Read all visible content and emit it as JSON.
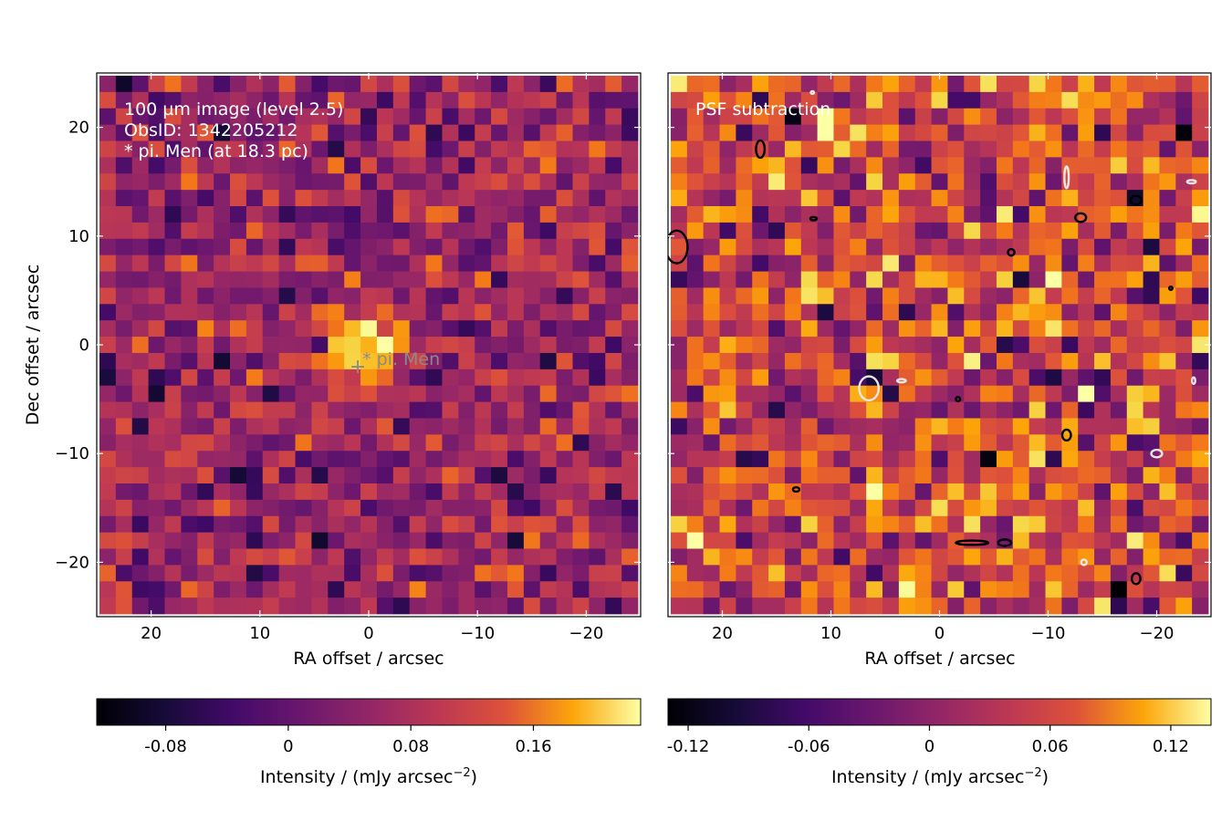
{
  "chart_data": [
    {
      "type": "heatmap",
      "panel": "left",
      "annotation_lines": [
        "100 µm image (level 2.5)",
        "ObsID: 1342205212",
        "* pi. Men (at 18.3 pc)"
      ],
      "xlabel": "RA offset / arcsec",
      "ylabel": "Dec offset / arcsec",
      "xlim": [
        25,
        -25
      ],
      "ylim": [
        -25,
        25
      ],
      "x_ticks": [
        20,
        10,
        0,
        -10,
        -20
      ],
      "x_tick_labels": [
        "20",
        "10",
        "0",
        "−10",
        "−20"
      ],
      "y_ticks": [
        20,
        10,
        0,
        -10,
        -20
      ],
      "y_tick_labels": [
        "20",
        "10",
        "0",
        "−10",
        "−20"
      ],
      "grid": false,
      "colormap": "inferno",
      "colorbar": {
        "label": "Intensity / (mJy arcsec",
        "label_exponent": "−2",
        "label_close": ")",
        "range": [
          -0.125,
          0.23
        ],
        "ticks": [
          -0.08,
          0,
          0.08,
          0.16
        ],
        "tick_labels": [
          "-0.08",
          "0",
          "0.08",
          "0.16"
        ]
      },
      "marker": {
        "x": 1,
        "y": -2,
        "symbol": "+",
        "label": "* pi. Men"
      },
      "source_peak": {
        "x": 0,
        "y": 0,
        "value": 0.22
      },
      "pixel_grid": {
        "nx": 33,
        "ny": 33,
        "pixel_size_arcsec": 1.5
      }
    },
    {
      "type": "heatmap",
      "panel": "right",
      "annotation_lines": [
        "PSF subtraction"
      ],
      "xlabel": "RA offset / arcsec",
      "ylabel": "",
      "xlim": [
        25,
        -25
      ],
      "ylim": [
        -25,
        25
      ],
      "x_ticks": [
        20,
        10,
        0,
        -10,
        -20
      ],
      "x_tick_labels": [
        "20",
        "10",
        "0",
        "−10",
        "−20"
      ],
      "grid": false,
      "colormap": "inferno",
      "colorbar": {
        "label": "Intensity / (mJy arcsec",
        "label_exponent": "−2",
        "label_close": ")",
        "range": [
          -0.13,
          0.14
        ],
        "ticks": [
          -0.12,
          -0.06,
          0,
          0.06,
          0.12
        ],
        "tick_labels": [
          "-0.12",
          "-0.06",
          "0",
          "0.06",
          "0.12"
        ]
      },
      "contours": [
        {
          "color": "black",
          "level": "positive",
          "x": 16.5,
          "y": 18,
          "rx": 0.4,
          "ry": 0.8
        },
        {
          "color": "black",
          "level": "positive",
          "x": 24.2,
          "y": 9,
          "rx": 1.0,
          "ry": 1.5
        },
        {
          "color": "black",
          "level": "positive",
          "x": 11.6,
          "y": 11.6,
          "rx": 0.3,
          "ry": 0.15
        },
        {
          "color": "black",
          "level": "positive",
          "x": -6.6,
          "y": 8.5,
          "rx": 0.3,
          "ry": 0.3
        },
        {
          "color": "black",
          "level": "positive",
          "x": -13.0,
          "y": 11.7,
          "rx": 0.5,
          "ry": 0.4
        },
        {
          "color": "black",
          "level": "positive",
          "x": -18.1,
          "y": 13.3,
          "rx": 0.5,
          "ry": 0.4
        },
        {
          "color": "black",
          "level": "positive",
          "x": -21.3,
          "y": 5.2,
          "rx": 0.15,
          "ry": 0.15
        },
        {
          "color": "black",
          "level": "positive",
          "x": -1.7,
          "y": -5.0,
          "rx": 0.2,
          "ry": 0.2
        },
        {
          "color": "black",
          "level": "positive",
          "x": -11.7,
          "y": -8.3,
          "rx": 0.4,
          "ry": 0.5
        },
        {
          "color": "black",
          "level": "positive",
          "x": 13.2,
          "y": -13.3,
          "rx": 0.3,
          "ry": 0.2
        },
        {
          "color": "black",
          "level": "positive",
          "x": -3.0,
          "y": -18.2,
          "rx": 1.5,
          "ry": 0.2
        },
        {
          "color": "black",
          "level": "positive",
          "x": -6.0,
          "y": -18.2,
          "rx": 0.6,
          "ry": 0.3
        },
        {
          "color": "black",
          "level": "positive",
          "x": -18.1,
          "y": -21.5,
          "rx": 0.4,
          "ry": 0.5
        },
        {
          "color": "white",
          "level": "negative",
          "x": 6.5,
          "y": -4.0,
          "rx": 0.9,
          "ry": 1.1
        },
        {
          "color": "white",
          "level": "negative",
          "x": 3.5,
          "y": -3.3,
          "rx": 0.4,
          "ry": 0.15
        },
        {
          "color": "white",
          "level": "negative",
          "x": -11.7,
          "y": 15.4,
          "rx": 0.2,
          "ry": 1.0
        },
        {
          "color": "white",
          "level": "negative",
          "x": -23.2,
          "y": 15.0,
          "rx": 0.4,
          "ry": 0.15
        },
        {
          "color": "white",
          "level": "negative",
          "x": -20.0,
          "y": -10.0,
          "rx": 0.5,
          "ry": 0.35
        },
        {
          "color": "white",
          "level": "negative",
          "x": -23.4,
          "y": -3.3,
          "rx": 0.15,
          "ry": 0.3
        },
        {
          "color": "white",
          "level": "negative",
          "x": -13.3,
          "y": -20.0,
          "rx": 0.25,
          "ry": 0.25
        },
        {
          "color": "white",
          "level": "negative",
          "x": 11.7,
          "y": 23.2,
          "rx": 0.15,
          "ry": 0.1
        }
      ],
      "pixel_grid": {
        "nx": 33,
        "ny": 33,
        "pixel_size_arcsec": 1.5
      }
    }
  ]
}
